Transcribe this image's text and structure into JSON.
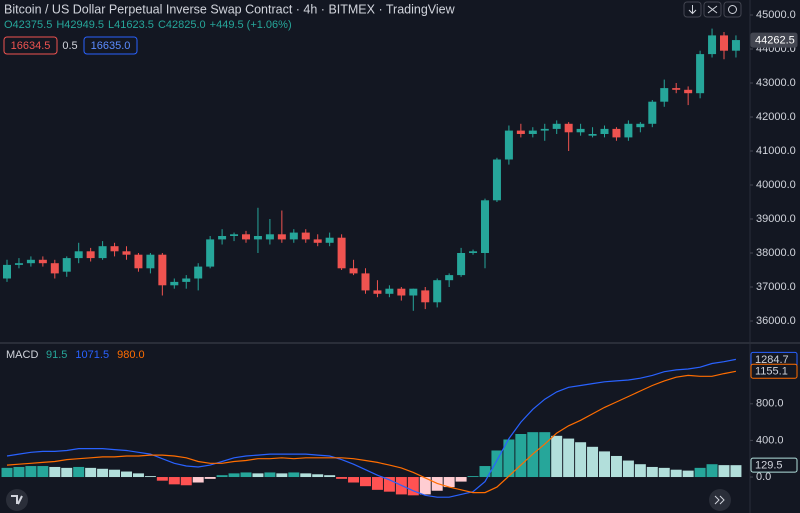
{
  "chart_data": [
    {
      "type": "candlestick",
      "title": "Bitcoin / US Dollar Perpetual Inverse Swap Contract · 4h · BITMEX · TradingView",
      "ohlc": [
        "O42375.5",
        "H42949.5",
        "L41623.5",
        "C42825.0",
        "+449.5 (+1.06%)"
      ],
      "quote": [
        "16634.5",
        "0.5",
        "16635.0"
      ],
      "open": [
        37250,
        37650,
        37700,
        37800,
        37700,
        37450,
        37850,
        38050,
        37850,
        38200,
        38050,
        37950,
        37550,
        37950,
        37050,
        37150,
        37250,
        37600,
        38400,
        38500,
        38550,
        38400,
        38400,
        38550,
        38400,
        38600,
        38400,
        38300,
        38450,
        37550,
        37400,
        36900,
        36800,
        36950,
        36750,
        36900,
        36550,
        37200,
        37350,
        38000,
        38000,
        39550,
        40750,
        41600,
        41500,
        41600,
        41650,
        41800,
        41550,
        41450,
        41500,
        41650,
        41400,
        41700,
        41800,
        42450,
        42850,
        42800,
        42700,
        43850,
        44400,
        43950
      ],
      "high": [
        37800,
        37850,
        37900,
        37900,
        37800,
        37900,
        38300,
        38150,
        38350,
        38300,
        38200,
        38000,
        38000,
        38000,
        37250,
        37350,
        37700,
        38500,
        38700,
        38600,
        38650,
        39330,
        39000,
        39250,
        38700,
        38700,
        38550,
        38600,
        38550,
        37800,
        37550,
        37200,
        37050,
        37000,
        36950,
        37000,
        37250,
        37400,
        38150,
        38100,
        39600,
        40800,
        41750,
        41800,
        41700,
        41800,
        41900,
        41850,
        41800,
        41700,
        41750,
        41700,
        41900,
        41850,
        42500,
        43100,
        43000,
        42900,
        43950,
        44600,
        44500,
        44400
      ],
      "low": [
        37150,
        37550,
        37600,
        37600,
        37250,
        37300,
        37700,
        37750,
        37800,
        37900,
        37800,
        37450,
        37400,
        36750,
        36950,
        36950,
        36900,
        37550,
        38250,
        38350,
        38300,
        38000,
        38250,
        38300,
        38300,
        38300,
        38200,
        38200,
        37500,
        37350,
        36800,
        36700,
        36700,
        36600,
        36300,
        36350,
        36400,
        37000,
        37300,
        37950,
        37550,
        39500,
        40600,
        41400,
        41400,
        41300,
        41500,
        41000,
        41450,
        41400,
        41400,
        41300,
        41300,
        41550,
        41700,
        42300,
        42700,
        42350,
        42550,
        43750,
        43700,
        43750
      ],
      "close": [
        37650,
        37700,
        37800,
        37700,
        37400,
        37850,
        38050,
        37850,
        38200,
        38050,
        37950,
        37550,
        37950,
        37050,
        37150,
        37250,
        37600,
        38400,
        38500,
        38550,
        38400,
        38500,
        38550,
        38400,
        38600,
        38400,
        38300,
        38450,
        37550,
        37400,
        36900,
        36800,
        36950,
        36750,
        36950,
        36550,
        37200,
        37350,
        38000,
        38050,
        39550,
        40750,
        41600,
        41500,
        41600,
        41650,
        41800,
        41550,
        41650,
        41500,
        41650,
        41400,
        41800,
        41800,
        42450,
        42850,
        42800,
        42700,
        43850,
        44400,
        43950,
        44262.5
      ],
      "last_label": "44262.5",
      "up_color": "#26a69a",
      "down_color": "#ef5350",
      "ylim": [
        35441,
        45441
      ],
      "yticks": [
        {
          "value": 36000,
          "label": "36000.0"
        },
        {
          "value": 37000,
          "label": "37000.0"
        },
        {
          "value": 38000,
          "label": "38000.0"
        },
        {
          "value": 39000,
          "label": "39000.0"
        },
        {
          "value": 40000,
          "label": "40000.0"
        },
        {
          "value": 41000,
          "label": "41000.0"
        },
        {
          "value": 42000,
          "label": "42000.0"
        },
        {
          "value": 43000,
          "label": "43000.0"
        },
        {
          "value": 44000,
          "label": "44000.0"
        },
        {
          "value": 45000,
          "label": "45000.0"
        }
      ]
    },
    {
      "type": "macd",
      "title": "MACD",
      "legend": [
        {
          "label": "91.5",
          "color": "#26a69a"
        },
        {
          "label": "1071.5",
          "color": "#2962ff"
        },
        {
          "label": "980.0",
          "color": "#ff6d00"
        }
      ],
      "histogram": {
        "values": [
          100,
          110,
          120,
          120,
          110,
          100,
          110,
          100,
          90,
          80,
          60,
          40,
          10,
          -40,
          -80,
          -90,
          -60,
          -20,
          20,
          40,
          50,
          40,
          50,
          40,
          50,
          40,
          30,
          20,
          -20,
          -60,
          -100,
          -140,
          -160,
          -190,
          -200,
          -190,
          -150,
          -110,
          -50,
          10,
          120,
          290,
          410,
          470,
          490,
          490,
          450,
          420,
          380,
          330,
          280,
          230,
          180,
          140,
          110,
          100,
          80,
          70,
          100,
          140,
          130,
          129.5
        ],
        "last_label": "129.5",
        "colors": {
          "rising_positive": "#26a69a",
          "falling_positive": "#b2dfdb",
          "falling_negative": "#ff5252",
          "rising_negative": "#ffcdd2"
        }
      },
      "series": [
        {
          "color": "#2962ff",
          "last_label": "1284.7",
          "values": [
            230,
            250,
            270,
            280,
            280,
            290,
            310,
            310,
            310,
            300,
            290,
            270,
            250,
            200,
            150,
            120,
            110,
            130,
            170,
            210,
            230,
            240,
            250,
            250,
            250,
            250,
            240,
            230,
            190,
            140,
            80,
            20,
            -30,
            -90,
            -150,
            -200,
            -220,
            -220,
            -190,
            -160,
            -50,
            180,
            420,
            600,
            740,
            850,
            930,
            980,
            1000,
            1020,
            1040,
            1050,
            1060,
            1080,
            1110,
            1150,
            1170,
            1180,
            1200,
            1240,
            1260,
            1284.7
          ]
        },
        {
          "color": "#ff6d00",
          "last_label": "1155.1",
          "values": [
            130,
            140,
            150,
            160,
            170,
            190,
            200,
            210,
            220,
            220,
            230,
            230,
            240,
            240,
            230,
            210,
            170,
            150,
            150,
            170,
            180,
            200,
            200,
            210,
            200,
            210,
            210,
            210,
            210,
            200,
            180,
            160,
            130,
            100,
            50,
            -10,
            -70,
            -110,
            -140,
            -170,
            -170,
            -110,
            10,
            130,
            250,
            360,
            480,
            560,
            620,
            690,
            760,
            820,
            880,
            940,
            1000,
            1050,
            1090,
            1110,
            1100,
            1100,
            1130,
            1155.1
          ]
        }
      ],
      "ylim": [
        -393,
        1464
      ],
      "yticks": [
        {
          "value": 0,
          "label": "0.0"
        },
        {
          "value": 400,
          "label": "400.0"
        },
        {
          "value": 800,
          "label": "800.0"
        }
      ]
    }
  ]
}
